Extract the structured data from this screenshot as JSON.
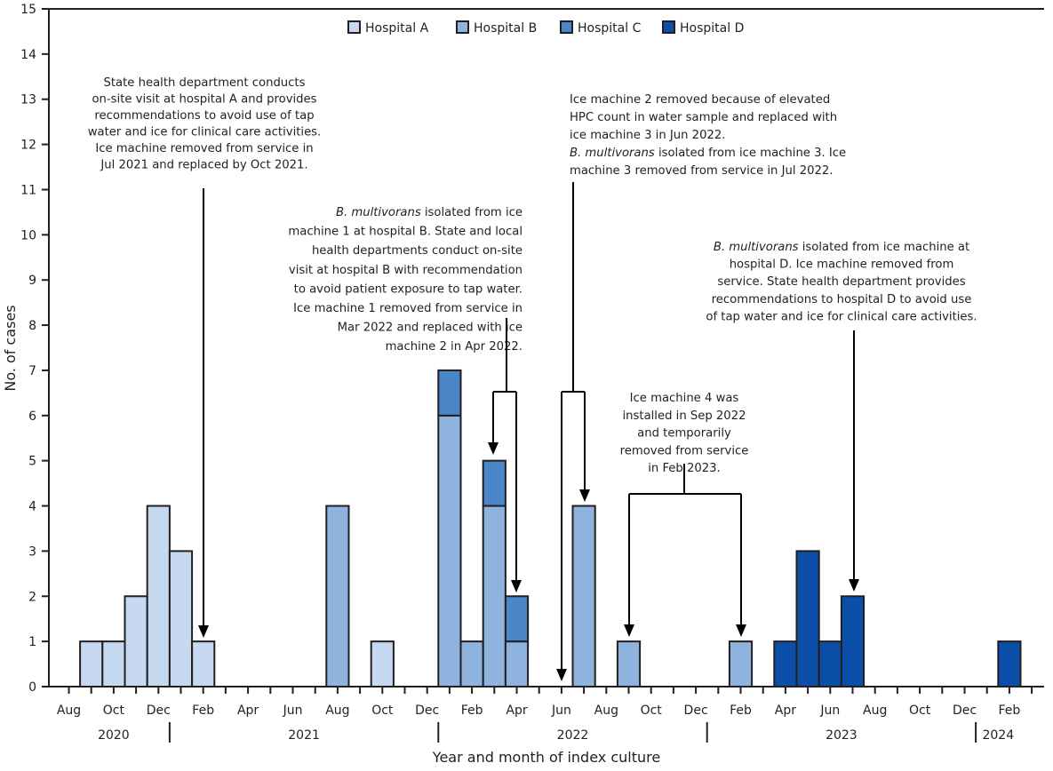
{
  "chart_data": {
    "type": "bar",
    "stacked": true,
    "xlabel": "Year and month of index culture",
    "ylabel": "No. of cases",
    "ylim": [
      0,
      15
    ],
    "yticks": [
      "0",
      "1",
      "2",
      "3",
      "4",
      "5",
      "6",
      "7",
      "8",
      "9",
      "10",
      "11",
      "12",
      "13",
      "14",
      "15"
    ],
    "grid": false,
    "legend_position": "top-center",
    "months_range": [
      "Aug 2020",
      "Feb 2024"
    ],
    "xtick_labels": [
      "Aug",
      "Oct",
      "Dec",
      "Feb",
      "Apr",
      "Jun",
      "Aug",
      "Oct",
      "Dec",
      "Feb",
      "Apr",
      "Jun",
      "Aug",
      "Oct",
      "Dec",
      "Feb",
      "Apr",
      "Jun",
      "Aug",
      "Oct",
      "Dec",
      "Feb"
    ],
    "year_labels": [
      "2020",
      "2021",
      "2022",
      "2023",
      "2024"
    ],
    "series": [
      {
        "name": "Hospital A",
        "color": "#c6d9f0",
        "points": [
          [
            "Sep 2020",
            1
          ],
          [
            "Oct 2020",
            1
          ],
          [
            "Nov 2020",
            2
          ],
          [
            "Dec 2020",
            4
          ],
          [
            "Jan 2021",
            3
          ],
          [
            "Feb 2021",
            1
          ],
          [
            "Oct 2021",
            1
          ]
        ]
      },
      {
        "name": "Hospital B",
        "color": "#8db3de",
        "points": [
          [
            "Aug 2021",
            4
          ],
          [
            "Jan 2022",
            6
          ],
          [
            "Feb 2022",
            1
          ],
          [
            "Mar 2022",
            4
          ],
          [
            "Apr 2022",
            1
          ],
          [
            "Jul 2022",
            4
          ],
          [
            "Sep 2022",
            1
          ],
          [
            "Feb 2023",
            1
          ]
        ]
      },
      {
        "name": "Hospital C",
        "color": "#4a86c8",
        "points": [
          [
            "Jan 2022",
            1
          ],
          [
            "Mar 2022",
            1
          ],
          [
            "Apr 2022",
            1
          ]
        ]
      },
      {
        "name": "Hospital D",
        "color": "#0b4fa8",
        "points": [
          [
            "Apr 2023",
            1
          ],
          [
            "May 2023",
            3
          ],
          [
            "Jun 2023",
            1
          ],
          [
            "Jul 2023",
            2
          ],
          [
            "Feb 2024",
            1
          ]
        ]
      }
    ],
    "annotations": [
      {
        "lines": [
          {
            "text": "State health department conducts"
          },
          {
            "text": "on-site visit at hospital A and provides"
          },
          {
            "text": "recommendations to avoid use of tap"
          },
          {
            "text": "water and ice for clinical care activities."
          },
          {
            "text": "Ice machine removed from service in"
          },
          {
            "text": "Jul 2021 and replaced by Oct 2021."
          }
        ]
      },
      {
        "lines": [
          {
            "italic": "B. multivorans",
            "text": " isolated from ice"
          },
          {
            "text": "machine 1 at hospital B. State and local"
          },
          {
            "text": "health departments conduct on-site"
          },
          {
            "text": "visit at hospital B with recommendation"
          },
          {
            "text": "to avoid patient exposure to tap water."
          },
          {
            "text": "Ice machine 1 removed from service in"
          },
          {
            "text": "Mar 2022 and replaced with ice"
          },
          {
            "text": "machine 2 in Apr 2022."
          }
        ]
      },
      {
        "lines": [
          {
            "text": "Ice machine 2 removed because of elevated"
          },
          {
            "text": "HPC count in water sample and replaced with"
          },
          {
            "text": "ice machine 3 in Jun 2022."
          },
          {
            "italic": "B. multivorans",
            "text": " isolated from ice machine 3. Ice"
          },
          {
            "text": "machine 3 removed from service in Jul 2022."
          }
        ]
      },
      {
        "lines": [
          {
            "text": "Ice machine 4 was"
          },
          {
            "text": "installed in Sep 2022"
          },
          {
            "text": "and temporarily"
          },
          {
            "text": "removed from service"
          },
          {
            "text": "in Feb 2023."
          }
        ]
      },
      {
        "lines": [
          {
            "italic": "B. multivorans",
            "text": " isolated from ice machine at"
          },
          {
            "text": "hospital D. Ice machine removed from"
          },
          {
            "text": "service. State health department provides"
          },
          {
            "text": "recommendations to hospital D to avoid use"
          },
          {
            "text": "of tap water and ice for clinical care activities."
          }
        ]
      }
    ]
  }
}
